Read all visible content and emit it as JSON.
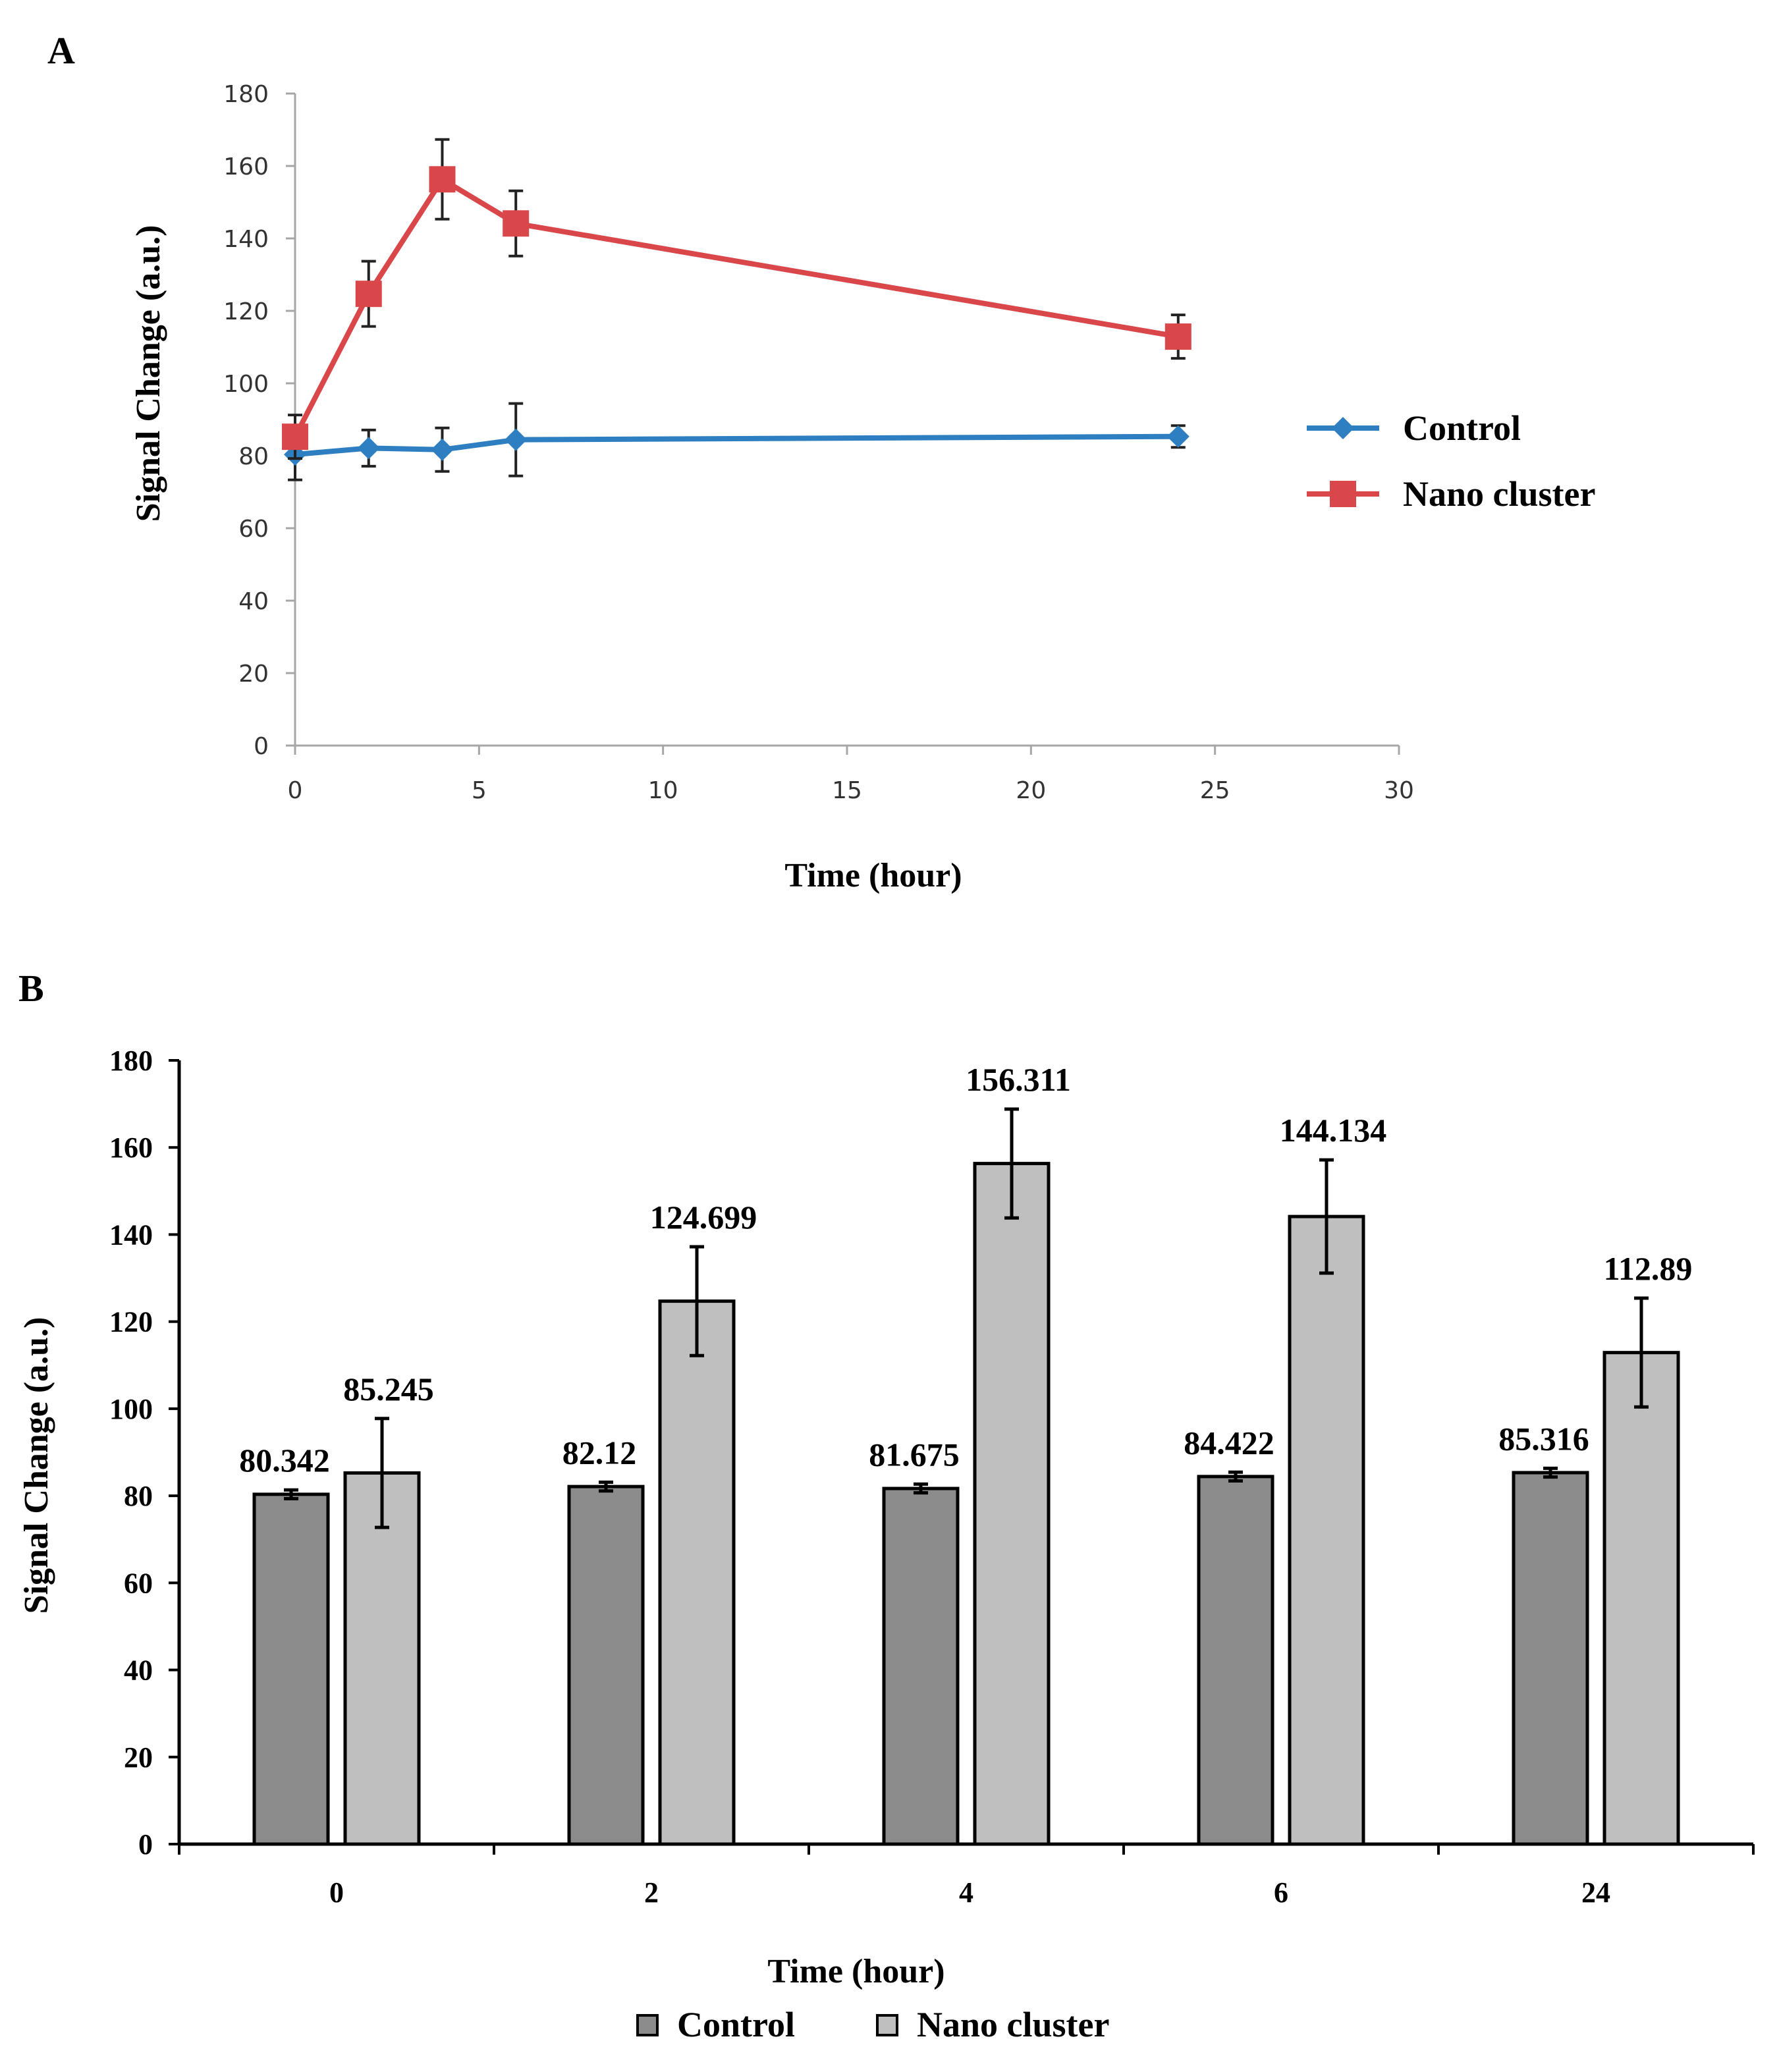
{
  "panels": {
    "a": "A",
    "b": "B"
  },
  "chart_data": [
    {
      "type": "line",
      "panel": "A",
      "title": "",
      "xlabel": "Time (hour)",
      "ylabel": "Signal Change (a.u.)",
      "xlim": [
        0,
        30
      ],
      "ylim": [
        0,
        180
      ],
      "xticks": [
        "0",
        "5",
        "10",
        "15",
        "20",
        "25",
        "30"
      ],
      "yticks": [
        "0",
        "20",
        "40",
        "60",
        "80",
        "100",
        "120",
        "140",
        "160",
        "180"
      ],
      "grid": false,
      "legend_position": "right",
      "x": [
        0,
        2,
        4,
        6,
        24
      ],
      "series": [
        {
          "name": "Control",
          "color": "#2e7fc2",
          "marker": "diamond",
          "values": [
            80.342,
            82.12,
            81.675,
            84.422,
            85.316
          ],
          "errors": [
            7,
            5,
            6,
            10,
            3
          ]
        },
        {
          "name": "Nano cluster",
          "color": "#d9474a",
          "marker": "square",
          "values": [
            85.245,
            124.699,
            156.311,
            144.134,
            112.89
          ],
          "errors": [
            6,
            9,
            11,
            9,
            6
          ]
        }
      ]
    },
    {
      "type": "bar",
      "panel": "B",
      "title": "",
      "xlabel": "Time (hour)",
      "ylabel": "Signal Change (a.u.)",
      "ylim": [
        0,
        180
      ],
      "yticks": [
        "0",
        "20",
        "40",
        "60",
        "80",
        "100",
        "120",
        "140",
        "160",
        "180"
      ],
      "grid": false,
      "legend_position": "bottom",
      "categories": [
        "0",
        "2",
        "4",
        "6",
        "24"
      ],
      "series": [
        {
          "name": "Control",
          "color": "#8c8c8c",
          "values": [
            80.342,
            82.12,
            81.675,
            84.422,
            85.316
          ],
          "labels": [
            "80.342",
            "82.12",
            "81.675",
            "84.422",
            "85.316"
          ],
          "errors": [
            1,
            1,
            1,
            1,
            1
          ]
        },
        {
          "name": "Nano cluster",
          "color": "#bfbfbf",
          "values": [
            85.245,
            124.699,
            156.311,
            144.134,
            112.89
          ],
          "labels": [
            "85.245",
            "124.699",
            "156.311",
            "144.134",
            "112.89"
          ],
          "errors": [
            12.5,
            12.5,
            12.5,
            13,
            12.5
          ]
        }
      ]
    }
  ]
}
